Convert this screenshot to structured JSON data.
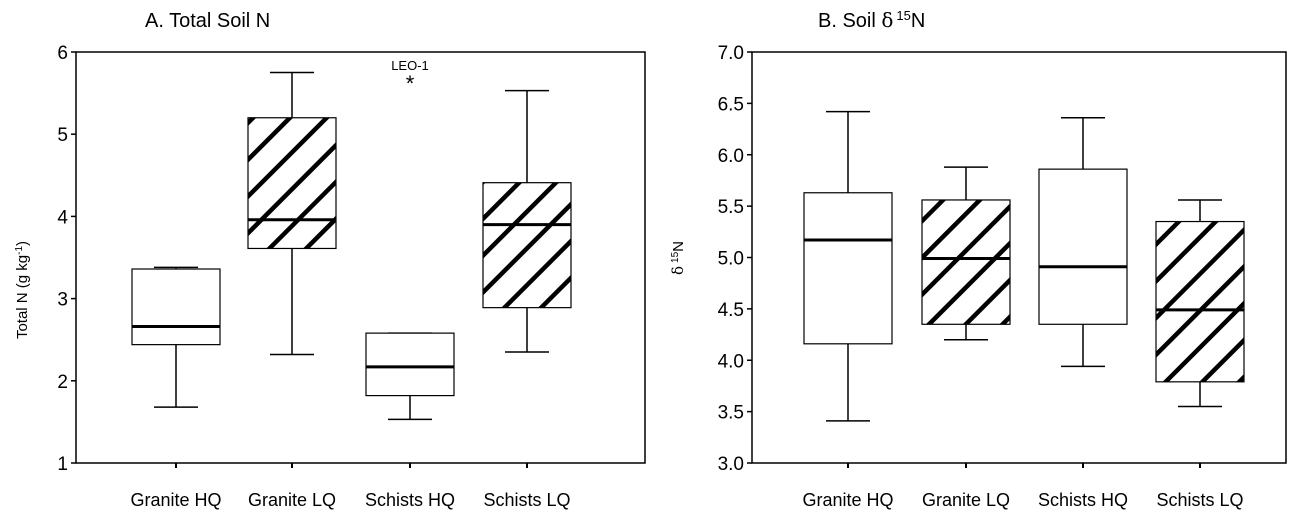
{
  "chart_data": [
    {
      "type": "box",
      "panel_title": "A. Total Soil N",
      "ylabel_main": "Total N (g kg",
      "ylabel_sup": "-1",
      "ylabel_end": ")",
      "ylim": [
        1,
        6
      ],
      "yticks": [
        1,
        2,
        3,
        4,
        5,
        6
      ],
      "ytick_labels": [
        "1",
        "2",
        "3",
        "4",
        "5",
        "6"
      ],
      "categories": [
        "Granite HQ",
        "Granite LQ",
        "Schists HQ",
        "Schists LQ"
      ],
      "boxes": [
        {
          "category": "Granite HQ",
          "whisker_low": 1.68,
          "q1": 2.44,
          "median": 2.66,
          "q3": 3.36,
          "whisker_high": 3.38,
          "hatched": false
        },
        {
          "category": "Granite LQ",
          "whisker_low": 2.32,
          "q1": 3.61,
          "median": 3.96,
          "q3": 5.2,
          "whisker_high": 5.75,
          "hatched": true
        },
        {
          "category": "Schists HQ",
          "whisker_low": 1.53,
          "q1": 1.82,
          "median": 2.17,
          "q3": 2.58,
          "whisker_high": 2.58,
          "hatched": false
        },
        {
          "category": "Schists LQ",
          "whisker_low": 2.35,
          "q1": 2.89,
          "median": 3.9,
          "q3": 4.41,
          "whisker_high": 5.53,
          "hatched": true
        }
      ],
      "outliers": [
        {
          "category": "Schists HQ",
          "value": 5.67,
          "label": "LEO-1",
          "marker": "*"
        }
      ]
    },
    {
      "type": "box",
      "panel_title_main": "B. Soil ",
      "panel_title_delta": "δ",
      "panel_title_sup": "15",
      "panel_title_end": "N",
      "ylabel_delta": "δ",
      "ylabel_sup": "15",
      "ylabel_end": "N",
      "ylim": [
        3.0,
        7.0
      ],
      "yticks": [
        3.0,
        3.5,
        4.0,
        4.5,
        5.0,
        5.5,
        6.0,
        6.5,
        7.0
      ],
      "ytick_labels": [
        "3.0",
        "3.5",
        "4.0",
        "4.5",
        "5.0",
        "5.5",
        "6.0",
        "6.5",
        "7.0"
      ],
      "categories": [
        "Granite HQ",
        "Granite LQ",
        "Schists HQ",
        "Schists LQ"
      ],
      "boxes": [
        {
          "category": "Granite HQ",
          "whisker_low": 3.41,
          "q1": 4.16,
          "median": 5.17,
          "q3": 5.63,
          "whisker_high": 6.42,
          "hatched": false
        },
        {
          "category": "Granite LQ",
          "whisker_low": 4.2,
          "q1": 4.35,
          "median": 4.99,
          "q3": 5.56,
          "whisker_high": 5.88,
          "hatched": true
        },
        {
          "category": "Schists HQ",
          "whisker_low": 3.94,
          "q1": 4.35,
          "median": 4.91,
          "q3": 5.86,
          "whisker_high": 6.36,
          "hatched": false
        },
        {
          "category": "Schists LQ",
          "whisker_low": 3.55,
          "q1": 3.79,
          "median": 4.49,
          "q3": 5.35,
          "whisker_high": 5.56,
          "hatched": true
        }
      ],
      "outliers": []
    }
  ]
}
